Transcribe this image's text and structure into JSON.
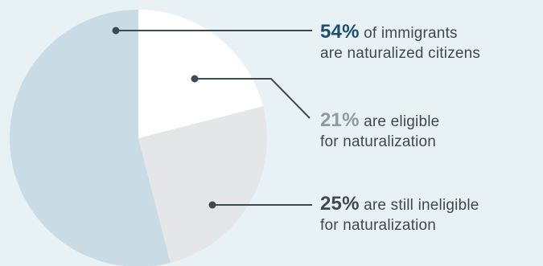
{
  "chart_data": {
    "type": "pie",
    "title": "",
    "slices": [
      {
        "value": 54,
        "pct_text": "54%",
        "line1_rest": " of immigrants",
        "line2": "are naturalized citizens",
        "color": "#c9dbe4",
        "pct_color": "#1d4e72"
      },
      {
        "value": 21,
        "pct_text": "21%",
        "line1_rest": " are eligible",
        "line2": "for naturalization",
        "color": "#ffffff",
        "pct_color": "#8f9aa0"
      },
      {
        "value": 25,
        "pct_text": "25%",
        "line1_rest": " are still ineligible",
        "line2": "for naturalization",
        "color": "#e5e6e7",
        "pct_color": "#3d4a52"
      }
    ],
    "leader_color": "#3d4a52"
  }
}
